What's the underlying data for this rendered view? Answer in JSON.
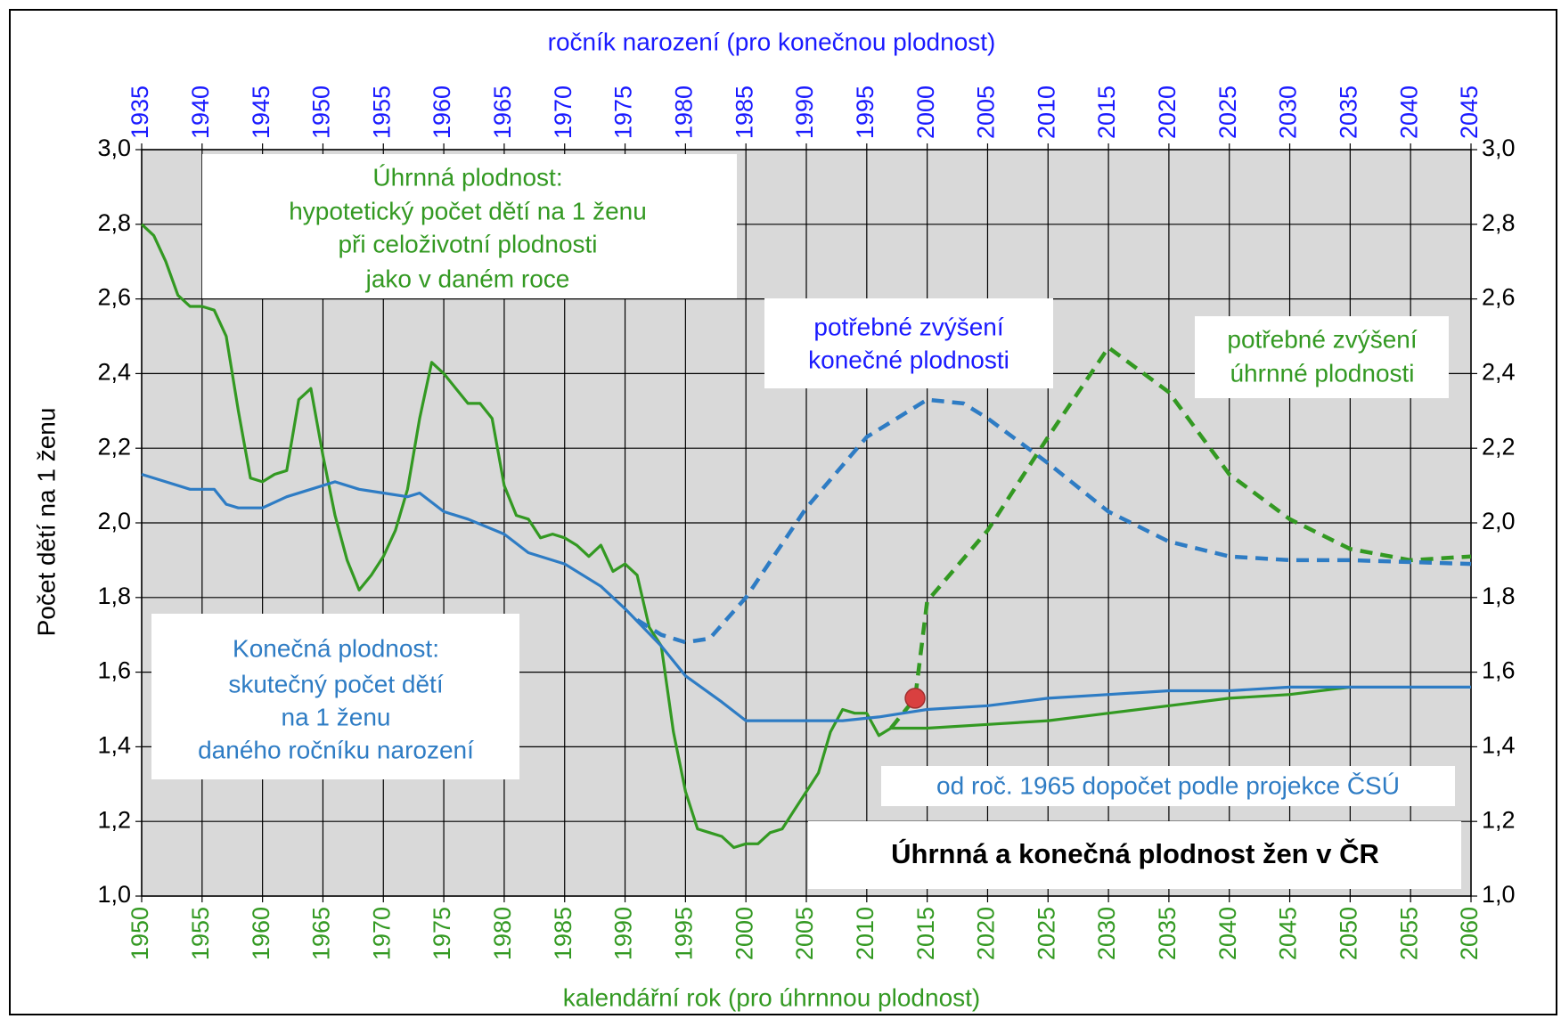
{
  "chart_data": {
    "type": "line",
    "xlabel": "kalendářní rok (pro úhrnnou plodnost)",
    "x2label": "ročník narození (pro konečnou plodnost)",
    "ylabel": "Počet dětí na 1 ženu",
    "xlim": [
      1950,
      2060
    ],
    "xticks": [
      1950,
      1955,
      1960,
      1965,
      1970,
      1975,
      1980,
      1985,
      1990,
      1995,
      2000,
      2005,
      2010,
      2015,
      2020,
      2025,
      2030,
      2035,
      2040,
      2045,
      2050,
      2055,
      2060
    ],
    "x2lim": [
      1935,
      2045
    ],
    "x2ticks": [
      1935,
      1940,
      1945,
      1950,
      1955,
      1960,
      1965,
      1970,
      1975,
      1980,
      1985,
      1990,
      1995,
      2000,
      2005,
      2010,
      2015,
      2020,
      2025,
      2030,
      2035,
      2040,
      2045
    ],
    "ylim": [
      1,
      3
    ],
    "yticks": [
      {
        "value": 1,
        "label": "1,0"
      },
      {
        "value": 1.2,
        "label": "1,2"
      },
      {
        "value": 1.4,
        "label": "1,4"
      },
      {
        "value": 1.6,
        "label": "1,6"
      },
      {
        "value": 1.8,
        "label": "1,8"
      },
      {
        "value": 2,
        "label": "2,0"
      },
      {
        "value": 2.2,
        "label": "2,2"
      },
      {
        "value": 2.4,
        "label": "2,4"
      },
      {
        "value": 2.6,
        "label": "2,6"
      },
      {
        "value": 2.8,
        "label": "2,8"
      },
      {
        "value": 3,
        "label": "3,0"
      }
    ],
    "y2lim": [
      1,
      3
    ],
    "y2ticks": [
      {
        "value": 1,
        "label": "1,0"
      },
      {
        "value": 1.2,
        "label": "1,2"
      },
      {
        "value": 1.4,
        "label": "1,4"
      },
      {
        "value": 1.6,
        "label": "1,6"
      },
      {
        "value": 1.8,
        "label": "1,8"
      },
      {
        "value": 2,
        "label": "2,0"
      },
      {
        "value": 2.2,
        "label": "2,2"
      },
      {
        "value": 2.4,
        "label": "2,4"
      },
      {
        "value": 2.6,
        "label": "2,6"
      },
      {
        "value": 2.8,
        "label": "2,8"
      },
      {
        "value": 3,
        "label": "3,0"
      }
    ],
    "grid": true,
    "background": "#d9d9d9",
    "x2color": "#1a1aff",
    "xcolor": "#339922",
    "series": [
      {
        "color": "#339922",
        "dash": false,
        "x": [
          1950,
          1951,
          1952,
          1953,
          1954,
          1955,
          1956,
          1957,
          1958,
          1959,
          1960,
          1961,
          1962,
          1963,
          1964,
          1965,
          1966,
          1967,
          1968,
          1969,
          1970,
          1971,
          1972,
          1973,
          1974,
          1975,
          1976,
          1977,
          1978,
          1979,
          1980,
          1981,
          1982,
          1983,
          1984,
          1985,
          1986,
          1987,
          1988,
          1989,
          1990,
          1991,
          1992,
          1993,
          1994,
          1995,
          1996,
          1997,
          1998,
          1999,
          2000,
          2001,
          2002,
          2003,
          2004,
          2005,
          2006,
          2007,
          2008,
          2009,
          2010,
          2011,
          2012,
          2013,
          2015,
          2020,
          2025,
          2030,
          2035,
          2040,
          2045,
          2050
        ],
        "values": [
          2.8,
          2.77,
          2.7,
          2.61,
          2.58,
          2.58,
          2.57,
          2.5,
          2.3,
          2.12,
          2.11,
          2.13,
          2.14,
          2.33,
          2.36,
          2.18,
          2.02,
          1.9,
          1.82,
          1.86,
          1.91,
          1.98,
          2.09,
          2.28,
          2.43,
          2.4,
          2.36,
          2.32,
          2.32,
          2.28,
          2.1,
          2.02,
          2.01,
          1.96,
          1.97,
          1.96,
          1.94,
          1.91,
          1.94,
          1.87,
          1.89,
          1.86,
          1.72,
          1.67,
          1.44,
          1.28,
          1.18,
          1.17,
          1.16,
          1.13,
          1.14,
          1.14,
          1.17,
          1.18,
          1.23,
          1.28,
          1.33,
          1.44,
          1.5,
          1.49,
          1.49,
          1.43,
          1.45,
          1.45,
          1.45,
          1.46,
          1.47,
          1.49,
          1.51,
          1.53,
          1.54,
          1.56
        ]
      },
      {
        "color": "#339922",
        "dash": true,
        "x": [
          2012,
          2014,
          2015,
          2020,
          2025,
          2030,
          2035,
          2040,
          2045,
          2050,
          2055,
          2060
        ],
        "values": [
          1.45,
          1.53,
          1.79,
          1.98,
          2.23,
          2.47,
          2.35,
          2.13,
          2.01,
          1.93,
          1.9,
          1.91
        ]
      },
      {
        "color": "#2e7cc4",
        "dash": false,
        "x": [
          1950,
          1952,
          1954,
          1956,
          1957,
          1958,
          1960,
          1962,
          1964,
          1966,
          1968,
          1970,
          1972,
          1973,
          1975,
          1977,
          1980,
          1982,
          1985,
          1988,
          1990,
          1993,
          1995,
          1998,
          2000,
          2003,
          2008,
          2011,
          2015,
          2020,
          2025,
          2030,
          2035,
          2040,
          2045,
          2060
        ],
        "values": [
          2.13,
          2.11,
          2.09,
          2.09,
          2.05,
          2.04,
          2.04,
          2.07,
          2.09,
          2.11,
          2.09,
          2.08,
          2.07,
          2.08,
          2.03,
          2.01,
          1.97,
          1.92,
          1.89,
          1.83,
          1.77,
          1.67,
          1.59,
          1.52,
          1.47,
          1.47,
          1.47,
          1.48,
          1.5,
          1.51,
          1.53,
          1.54,
          1.55,
          1.55,
          1.56,
          1.56
        ]
      },
      {
        "color": "#2e7cc4",
        "dash": true,
        "x": [
          1991,
          1993,
          1995,
          1997,
          2000,
          2005,
          2010,
          2015,
          2018,
          2020,
          2025,
          2030,
          2035,
          2040,
          2045,
          2050,
          2060
        ],
        "values": [
          1.74,
          1.7,
          1.68,
          1.69,
          1.8,
          2.04,
          2.23,
          2.33,
          2.32,
          2.28,
          2.16,
          2.03,
          1.95,
          1.91,
          1.9,
          1.9,
          1.89
        ]
      }
    ],
    "points": {
      "x": [
        2014
      ],
      "values": [
        1.53
      ],
      "color": "#d94040"
    },
    "annotations": [
      [
        "Úhrnná plodnost:",
        "hypotetický počet dětí na 1 ženu",
        "při celoživotní plodnosti",
        "jako v daném roce"
      ],
      [
        "potřebné zvýšení",
        "konečné plodnosti"
      ],
      [
        "potřebné zvýšení",
        "úhrnné plodnosti"
      ],
      [
        "Konečná plodnost:",
        "skutečný počet dětí",
        "na 1 ženu",
        "daného ročníku narození"
      ],
      [
        "od roč. 1965 dopočet podle projekce ČSÚ"
      ]
    ],
    "title": "Úhrnná a konečná plodnost žen v ČR"
  }
}
